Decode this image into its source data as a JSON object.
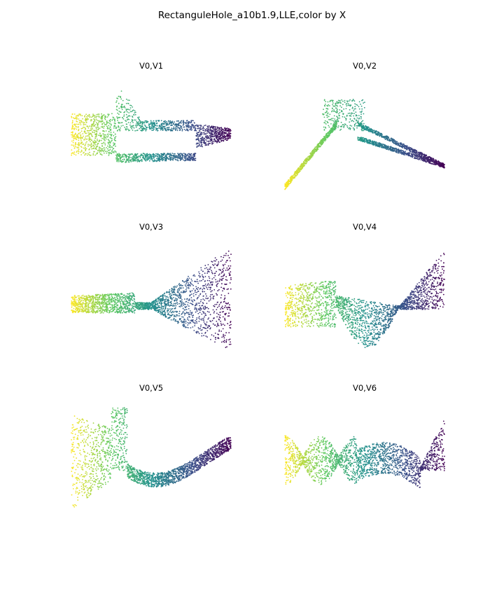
{
  "figure": {
    "title": "RectanguleHole_a10b1.9,LLE,color by X"
  },
  "colormap": {
    "name": "viridis",
    "stops": [
      "#440154",
      "#3b528b",
      "#21918c",
      "#5ec962",
      "#fde725"
    ],
    "color_variable": "X"
  },
  "chart_data": [
    {
      "type": "scatter",
      "title": "V0,V1",
      "x_variable": "V0",
      "y_variable": "V1",
      "axes_visible": false,
      "grid": false,
      "shape": "horizontal rectangle with central hole: yellow block at left, hole between x≈0.3 and x≈0.75, dark purple tail at right",
      "x_range": [
        -1,
        1
      ],
      "y_range": [
        -1,
        1
      ]
    },
    {
      "type": "scatter",
      "title": "V0,V2",
      "x_variable": "V0",
      "y_variable": "V2",
      "axes_visible": false,
      "grid": false,
      "shape": "thin yellow diagonal rising to a green peak, then two teal/blue arms converging down-right to purple tip",
      "x_range": [
        -1,
        1
      ],
      "y_range": [
        -1,
        1
      ]
    },
    {
      "type": "scatter",
      "title": "V0,V3",
      "x_variable": "V0",
      "y_variable": "V3",
      "axes_visible": false,
      "grid": false,
      "shape": "yellow band at left, twisted crossing near center, widening purple fan on right",
      "x_range": [
        -1,
        1
      ],
      "y_range": [
        -1,
        1
      ]
    },
    {
      "type": "scatter",
      "title": "V0,V4",
      "x_variable": "V0",
      "y_variable": "V4",
      "axes_visible": false,
      "grid": false,
      "shape": "yellow-green block at left, teal lobe hanging down in middle, pinch point then purple fan rising on right",
      "x_range": [
        -1,
        1
      ],
      "y_range": [
        -1,
        1
      ]
    },
    {
      "type": "scatter",
      "title": "V0,V5",
      "x_variable": "V0",
      "y_variable": "V5",
      "axes_visible": false,
      "grid": false,
      "shape": "tall yellow column at left, green spike, teal/blue U-shaped curve rising to purple end at right",
      "x_range": [
        -1,
        1
      ],
      "y_range": [
        -1,
        1
      ]
    },
    {
      "type": "scatter",
      "title": "V0,V6",
      "x_variable": "V0",
      "y_variable": "V6",
      "axes_visible": false,
      "grid": false,
      "shape": "yellow bow-tie at left, green hourglass, tall teal spike, blue band, purple fan rising at right",
      "x_range": [
        -1,
        1
      ],
      "y_range": [
        -1,
        1
      ]
    }
  ]
}
